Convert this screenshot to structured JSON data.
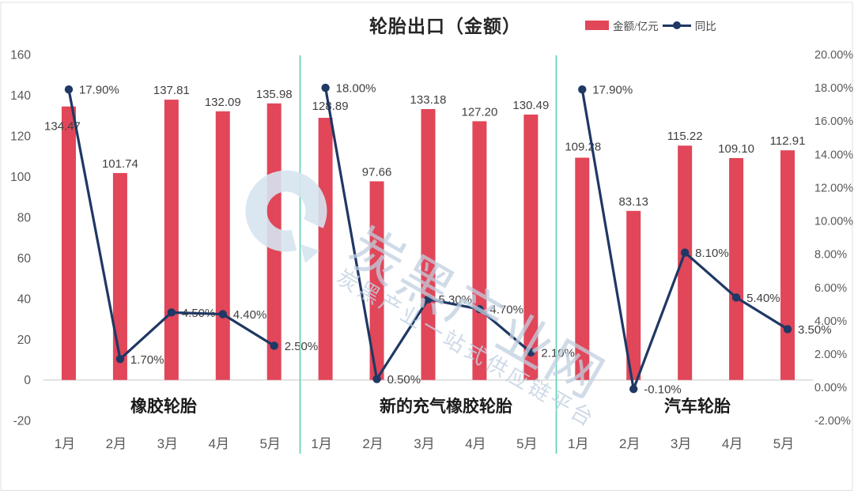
{
  "title": "轮胎出口（金额）",
  "legend": {
    "bar_label": "金额/亿元",
    "line_label": "同比"
  },
  "watermark": {
    "logo": "ring-swoosh-logo",
    "text_large": "炭黑产业网",
    "text_small": "炭黑产业一站式供应链平台"
  },
  "colors": {
    "bar": "#e14659",
    "line": "#1f3864",
    "separator": "#5ecfb4",
    "axis_line": "#d9d9d9",
    "tick_text": "#595959",
    "data_label": "#404040",
    "group_label": "#1a1a1a",
    "watermark": "#c2d3e4"
  },
  "chart_data": {
    "type": "bar",
    "subtype": "combo-bar-line-dual-axis",
    "title": "轮胎出口（金额）",
    "series": [
      {
        "name": "金额/亿元",
        "type": "bar",
        "axis": "left"
      },
      {
        "name": "同比",
        "type": "line",
        "axis": "right"
      }
    ],
    "groups": [
      {
        "name": "橡胶轮胎",
        "categories": [
          "1月",
          "2月",
          "3月",
          "4月",
          "5月"
        ],
        "amount": [
          134.47,
          101.74,
          137.81,
          132.09,
          135.98
        ],
        "yoy_pct": [
          17.9,
          1.7,
          4.5,
          4.4,
          2.5
        ]
      },
      {
        "name": "新的充气橡胶轮胎",
        "categories": [
          "1月",
          "2月",
          "3月",
          "4月",
          "5月"
        ],
        "amount": [
          128.89,
          97.66,
          133.18,
          127.2,
          130.49
        ],
        "yoy_pct": [
          18.0,
          0.5,
          5.3,
          4.7,
          2.1
        ]
      },
      {
        "name": "汽车轮胎",
        "categories": [
          "1月",
          "2月",
          "3月",
          "4月",
          "5月"
        ],
        "amount": [
          109.28,
          83.13,
          115.22,
          109.1,
          112.91
        ],
        "yoy_pct": [
          17.9,
          -0.1,
          8.1,
          5.4,
          3.5
        ]
      }
    ],
    "left_axis": {
      "min": -20,
      "max": 160,
      "step": 20
    },
    "right_axis": {
      "min": -2,
      "max": 20,
      "step": 2,
      "format": "0.00%"
    },
    "grid": "none",
    "legend_position": "top-right"
  }
}
